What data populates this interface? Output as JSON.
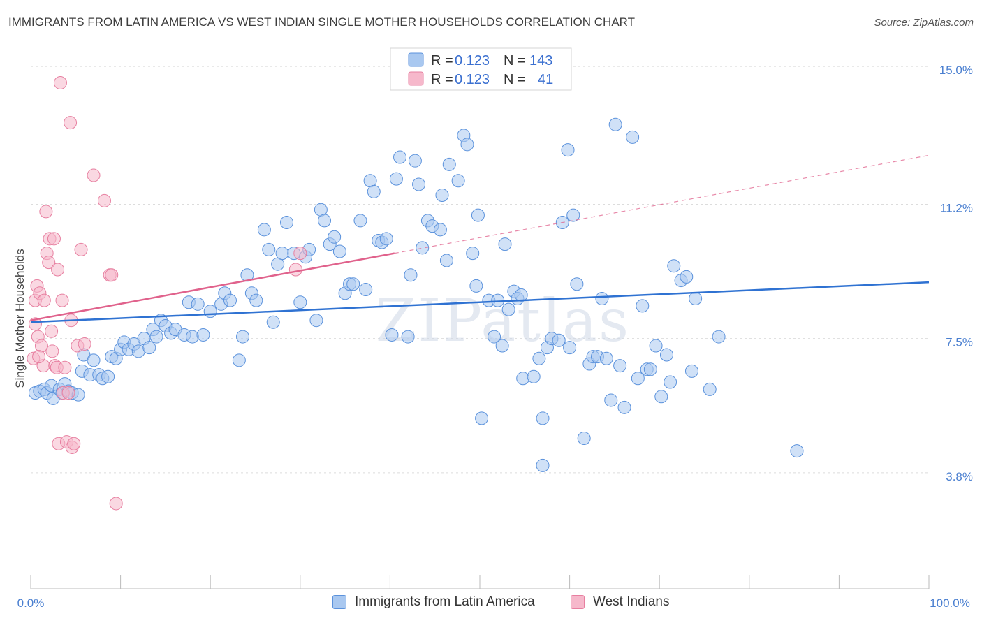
{
  "title": "IMMIGRANTS FROM LATIN AMERICA VS WEST INDIAN SINGLE MOTHER HOUSEHOLDS CORRELATION CHART",
  "source": "Source: ZipAtlas.com",
  "watermark": "ZIPatlas",
  "colors": {
    "blue_fill": "#a9c8f0",
    "blue_stroke": "#5b92dc",
    "blue_line": "#2f72d2",
    "pink_fill": "#f6b8cb",
    "pink_stroke": "#e77fa0",
    "pink_line": "#e0628c",
    "tick_color": "#4a7fd0",
    "grid": "#dcdcdc"
  },
  "legend": {
    "r_label": "R =",
    "n_label": "N =",
    "rows": [
      {
        "series": "blue",
        "r": "0.123",
        "n": "143"
      },
      {
        "series": "pink",
        "r": "0.123",
        "n": "41"
      }
    ]
  },
  "chart_data": {
    "type": "scatter",
    "title": "IMMIGRANTS FROM LATIN AMERICA VS WEST INDIAN SINGLE MOTHER HOUSEHOLDS CORRELATION CHART",
    "xlabel": "",
    "ylabel": "Single Mother Households",
    "xlim": [
      0,
      100
    ],
    "ylim": [
      0.6,
      15.6
    ],
    "x_ticks": [
      "0.0%",
      "100.0%"
    ],
    "y_ticks": [
      {
        "value": 3.8,
        "label": "3.8%"
      },
      {
        "value": 7.5,
        "label": "7.5%"
      },
      {
        "value": 11.2,
        "label": "11.2%"
      },
      {
        "value": 15.0,
        "label": "15.0%"
      }
    ],
    "grid": true,
    "legend_position": "top-center",
    "series": [
      {
        "name": "Immigrants from Latin America",
        "color": "blue",
        "trend": {
          "x0": 0,
          "y0": 7.95,
          "x1": 100,
          "y1": 9.05
        },
        "points": [
          [
            0.5,
            6.0
          ],
          [
            1.0,
            6.05
          ],
          [
            1.5,
            6.1
          ],
          [
            1.8,
            6.0
          ],
          [
            2.3,
            6.2
          ],
          [
            2.5,
            5.85
          ],
          [
            3.2,
            6.1
          ],
          [
            3.5,
            6.0
          ],
          [
            3.8,
            6.25
          ],
          [
            4.2,
            6.05
          ],
          [
            4.6,
            6.0
          ],
          [
            5.3,
            5.95
          ],
          [
            5.7,
            6.6
          ],
          [
            5.9,
            7.05
          ],
          [
            6.6,
            6.5
          ],
          [
            7.0,
            6.9
          ],
          [
            7.6,
            6.5
          ],
          [
            8.0,
            6.4
          ],
          [
            8.6,
            6.45
          ],
          [
            9.0,
            7.0
          ],
          [
            9.5,
            6.95
          ],
          [
            10.0,
            7.2
          ],
          [
            10.4,
            7.4
          ],
          [
            10.9,
            7.2
          ],
          [
            11.5,
            7.35
          ],
          [
            12.0,
            7.15
          ],
          [
            12.6,
            7.5
          ],
          [
            13.2,
            7.25
          ],
          [
            13.6,
            7.75
          ],
          [
            14.0,
            7.55
          ],
          [
            14.5,
            8.0
          ],
          [
            15.0,
            7.85
          ],
          [
            15.6,
            7.65
          ],
          [
            16.1,
            7.75
          ],
          [
            17.1,
            7.6
          ],
          [
            17.6,
            8.5
          ],
          [
            18.0,
            7.55
          ],
          [
            18.6,
            8.45
          ],
          [
            19.2,
            7.6
          ],
          [
            20.0,
            8.25
          ],
          [
            21.2,
            8.45
          ],
          [
            21.6,
            8.75
          ],
          [
            22.2,
            8.55
          ],
          [
            23.2,
            6.9
          ],
          [
            23.6,
            7.55
          ],
          [
            24.1,
            9.25
          ],
          [
            24.6,
            8.75
          ],
          [
            25.1,
            8.55
          ],
          [
            26.0,
            10.5
          ],
          [
            26.5,
            9.95
          ],
          [
            27.0,
            7.95
          ],
          [
            27.5,
            9.55
          ],
          [
            28.0,
            9.85
          ],
          [
            28.5,
            10.7
          ],
          [
            29.3,
            9.85
          ],
          [
            30.0,
            8.5
          ],
          [
            30.6,
            9.75
          ],
          [
            31.0,
            9.95
          ],
          [
            31.8,
            8.0
          ],
          [
            32.3,
            11.05
          ],
          [
            32.7,
            10.75
          ],
          [
            33.3,
            10.1
          ],
          [
            33.8,
            10.3
          ],
          [
            34.4,
            9.9
          ],
          [
            35.0,
            8.75
          ],
          [
            35.5,
            9.0
          ],
          [
            35.9,
            9.0
          ],
          [
            36.7,
            10.75
          ],
          [
            37.3,
            8.85
          ],
          [
            37.8,
            11.85
          ],
          [
            38.2,
            11.55
          ],
          [
            38.7,
            10.2
          ],
          [
            39.1,
            10.15
          ],
          [
            39.6,
            10.25
          ],
          [
            40.2,
            7.6
          ],
          [
            40.7,
            11.9
          ],
          [
            41.1,
            12.5
          ],
          [
            42.0,
            7.55
          ],
          [
            42.3,
            9.25
          ],
          [
            42.8,
            12.4
          ],
          [
            43.2,
            11.75
          ],
          [
            43.6,
            10.0
          ],
          [
            44.2,
            10.75
          ],
          [
            44.7,
            10.6
          ],
          [
            45.6,
            10.5
          ],
          [
            45.8,
            11.45
          ],
          [
            46.3,
            9.65
          ],
          [
            46.6,
            12.3
          ],
          [
            47.6,
            11.85
          ],
          [
            48.2,
            13.1
          ],
          [
            48.6,
            12.85
          ],
          [
            49.2,
            9.85
          ],
          [
            49.6,
            8.95
          ],
          [
            49.8,
            10.9
          ],
          [
            50.2,
            5.3
          ],
          [
            51.0,
            8.55
          ],
          [
            51.6,
            7.55
          ],
          [
            52.0,
            8.55
          ],
          [
            52.5,
            7.3
          ],
          [
            52.8,
            10.1
          ],
          [
            53.2,
            8.3
          ],
          [
            53.8,
            8.8
          ],
          [
            54.2,
            8.6
          ],
          [
            54.6,
            8.7
          ],
          [
            54.8,
            6.4
          ],
          [
            56.0,
            6.45
          ],
          [
            56.6,
            6.95
          ],
          [
            57.0,
            5.3
          ],
          [
            57.5,
            7.25
          ],
          [
            58.0,
            7.5
          ],
          [
            58.8,
            7.45
          ],
          [
            59.2,
            10.7
          ],
          [
            59.8,
            12.7
          ],
          [
            60.0,
            7.25
          ],
          [
            60.4,
            10.9
          ],
          [
            60.8,
            9.0
          ],
          [
            61.6,
            4.75
          ],
          [
            62.2,
            6.8
          ],
          [
            62.6,
            7.0
          ],
          [
            63.1,
            7.0
          ],
          [
            63.6,
            8.6
          ],
          [
            64.1,
            6.95
          ],
          [
            64.6,
            5.8
          ],
          [
            65.1,
            13.4
          ],
          [
            65.6,
            6.75
          ],
          [
            66.1,
            5.6
          ],
          [
            67.0,
            13.05
          ],
          [
            67.6,
            6.4
          ],
          [
            68.1,
            8.4
          ],
          [
            68.6,
            6.65
          ],
          [
            69.0,
            6.65
          ],
          [
            69.6,
            7.3
          ],
          [
            70.2,
            5.9
          ],
          [
            70.8,
            7.05
          ],
          [
            71.2,
            6.3
          ],
          [
            71.6,
            9.5
          ],
          [
            72.4,
            9.1
          ],
          [
            73.0,
            9.2
          ],
          [
            73.6,
            6.6
          ],
          [
            74.0,
            8.6
          ],
          [
            75.6,
            6.1
          ],
          [
            76.6,
            7.55
          ],
          [
            85.3,
            4.4
          ],
          [
            57.0,
            4.0
          ]
        ]
      },
      {
        "name": "West Indians",
        "color": "pink",
        "trend": {
          "x0": 0,
          "y0": 8.0,
          "x1": 40.5,
          "y1": 9.85
        },
        "trend_dashed": {
          "x0": 40.5,
          "y0": 9.85,
          "x1": 100,
          "y1": 12.55
        },
        "points": [
          [
            0.3,
            6.95
          ],
          [
            0.5,
            7.9
          ],
          [
            0.5,
            8.55
          ],
          [
            0.7,
            8.95
          ],
          [
            0.8,
            7.55
          ],
          [
            1.0,
            8.75
          ],
          [
            1.2,
            7.3
          ],
          [
            1.4,
            6.75
          ],
          [
            1.5,
            8.55
          ],
          [
            1.7,
            11.0
          ],
          [
            1.8,
            9.85
          ],
          [
            2.0,
            9.6
          ],
          [
            2.1,
            10.25
          ],
          [
            2.3,
            7.7
          ],
          [
            2.4,
            7.15
          ],
          [
            2.6,
            10.25
          ],
          [
            2.7,
            6.75
          ],
          [
            2.9,
            6.7
          ],
          [
            3.1,
            4.6
          ],
          [
            3.3,
            14.55
          ],
          [
            3.5,
            8.55
          ],
          [
            3.6,
            6.0
          ],
          [
            3.8,
            6.7
          ],
          [
            4.0,
            4.65
          ],
          [
            4.2,
            6.0
          ],
          [
            4.4,
            13.45
          ],
          [
            4.5,
            8.0
          ],
          [
            4.6,
            4.5
          ],
          [
            4.8,
            4.6
          ],
          [
            5.2,
            7.3
          ],
          [
            5.6,
            9.95
          ],
          [
            6.0,
            7.35
          ],
          [
            7.0,
            12.0
          ],
          [
            8.2,
            11.3
          ],
          [
            8.8,
            9.25
          ],
          [
            9.0,
            9.25
          ],
          [
            9.5,
            2.95
          ],
          [
            30.0,
            9.85
          ],
          [
            29.5,
            9.4
          ],
          [
            3.0,
            9.4
          ],
          [
            0.9,
            7.0
          ]
        ]
      }
    ]
  },
  "bottom_legend": [
    {
      "label": "Immigrants from Latin America",
      "color": "blue"
    },
    {
      "label": "West Indians",
      "color": "pink"
    }
  ]
}
